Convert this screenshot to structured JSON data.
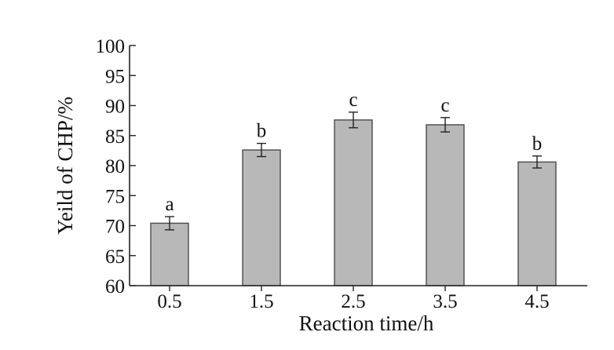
{
  "chart_data": {
    "type": "bar",
    "title": "",
    "xlabel": "Reaction time/h",
    "ylabel": "Yeild of CHP/%",
    "categories": [
      "0.5",
      "1.5",
      "2.5",
      "3.5",
      "4.5"
    ],
    "values": [
      70.4,
      82.6,
      87.6,
      86.8,
      80.6
    ],
    "errors": [
      1.1,
      1.1,
      1.3,
      1.2,
      1.0
    ],
    "significance_labels": [
      "a",
      "b",
      "c",
      "c",
      "b"
    ],
    "ylim": [
      60,
      100
    ],
    "yticks": [
      "60",
      "65",
      "70",
      "75",
      "80",
      "85",
      "90",
      "95",
      "100"
    ],
    "grid": false,
    "bar_color": "#b8b8b8"
  }
}
